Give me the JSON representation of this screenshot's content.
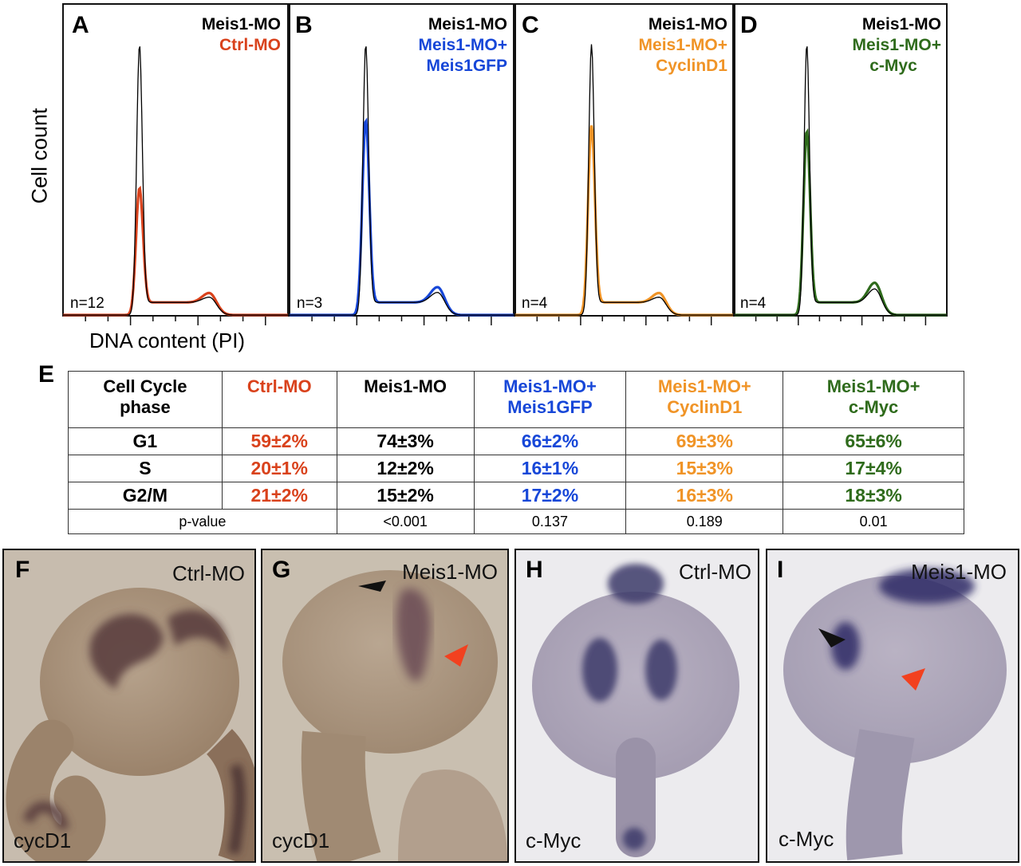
{
  "colors": {
    "ctrl": "#d9421c",
    "meis": "#000000",
    "rescue_gfp": "#1747d8",
    "rescue_cyclin": "#f09427",
    "rescue_myc": "#2f6b1c"
  },
  "axes": {
    "y_label": "Cell count",
    "x_label": "DNA content (PI)"
  },
  "panels": [
    {
      "letter": "A",
      "line1": "Meis1-MO",
      "line2": "Ctrl-MO",
      "line3": "",
      "n": "n=12"
    },
    {
      "letter": "B",
      "line1": "Meis1-MO",
      "line2": "Meis1-MO+",
      "line3": "Meis1GFP",
      "n": "n=3"
    },
    {
      "letter": "C",
      "line1": "Meis1-MO",
      "line2": "Meis1-MO+",
      "line3": "CyclinD1",
      "n": "n=4"
    },
    {
      "letter": "D",
      "line1": "Meis1-MO",
      "line2": "Meis1-MO+",
      "line3": "c-Myc",
      "n": "n=4"
    }
  ],
  "chart_data": [
    {
      "type": "line",
      "panel": "A",
      "series": [
        {
          "name": "Meis1-MO"
        },
        {
          "name": "Ctrl-MO"
        }
      ]
    },
    {
      "type": "line",
      "panel": "B",
      "series": [
        {
          "name": "Meis1-MO"
        },
        {
          "name": "Meis1-MO+ Meis1GFP"
        }
      ]
    },
    {
      "type": "line",
      "panel": "C",
      "series": [
        {
          "name": "Meis1-MO"
        },
        {
          "name": "Meis1-MO+ CyclinD1"
        }
      ]
    },
    {
      "type": "line",
      "panel": "D",
      "series": [
        {
          "name": "Meis1-MO"
        },
        {
          "name": "Meis1-MO+ c-Myc"
        }
      ]
    }
  ],
  "table": {
    "letter": "E",
    "header": {
      "phase1": "Cell Cycle",
      "phase2": "phase",
      "c1a": "Ctrl-MO",
      "c1b": "",
      "c2a": "Meis1-MO",
      "c2b": "",
      "c3a": "Meis1-MO+",
      "c3b": "Meis1GFP",
      "c4a": "Meis1-MO+",
      "c4b": "CyclinD1",
      "c5a": "Meis1-MO+",
      "c5b": "c-Myc"
    },
    "rows": [
      {
        "phase": "G1",
        "v": [
          "59±2%",
          "74±3%",
          "66±2%",
          "69±3%",
          "65±6%"
        ]
      },
      {
        "phase": "S",
        "v": [
          "20±1%",
          "12±2%",
          "16±1%",
          "15±3%",
          "17±4%"
        ]
      },
      {
        "phase": "G2/M",
        "v": [
          "21±2%",
          "15±2%",
          "17±2%",
          "16±3%",
          "18±3%"
        ]
      }
    ],
    "pvalue": {
      "label": "p-value",
      "v": [
        "<0.001",
        "0.137",
        "0.189",
        "0.01"
      ]
    }
  },
  "photos": [
    {
      "letter": "F",
      "condition": "Ctrl-MO",
      "marker": "cycD1"
    },
    {
      "letter": "G",
      "condition": "Meis1-MO",
      "marker": "cycD1"
    },
    {
      "letter": "H",
      "condition": "Ctrl-MO",
      "marker": "c-Myc"
    },
    {
      "letter": "I",
      "condition": "Meis1-MO",
      "marker": "c-Myc"
    }
  ]
}
